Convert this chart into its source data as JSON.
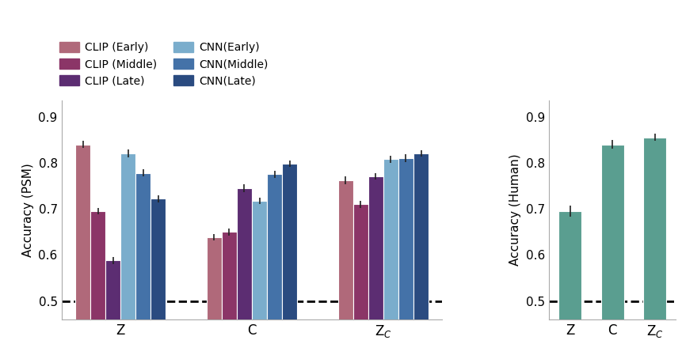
{
  "left_panel": {
    "ylabel": "Accuracy (PSM)",
    "ylim": [
      0.46,
      0.935
    ],
    "yticks": [
      0.5,
      0.6,
      0.7,
      0.8,
      0.9
    ],
    "groups": [
      "Z",
      "C",
      "Z$_C$"
    ],
    "series": [
      {
        "label": "CLIP (Early)",
        "color": "#b0697a",
        "values": [
          0.84,
          0.638,
          0.762
        ],
        "errors": [
          0.008,
          0.007,
          0.008
        ]
      },
      {
        "label": "CLIP (Middle)",
        "color": "#8b3567",
        "values": [
          0.695,
          0.65,
          0.71
        ],
        "errors": [
          0.007,
          0.008,
          0.008
        ]
      },
      {
        "label": "CLIP (Late)",
        "color": "#5c2d72",
        "values": [
          0.588,
          0.745,
          0.77
        ],
        "errors": [
          0.008,
          0.008,
          0.007
        ]
      },
      {
        "label": "CNN(Early)",
        "color": "#7aadcc",
        "values": [
          0.82,
          0.718,
          0.808
        ],
        "errors": [
          0.009,
          0.007,
          0.008
        ]
      },
      {
        "label": "CNN(Middle)",
        "color": "#4472a8",
        "values": [
          0.778,
          0.775,
          0.81
        ],
        "errors": [
          0.008,
          0.008,
          0.008
        ]
      },
      {
        "label": "CNN(Late)",
        "color": "#2a4b80",
        "values": [
          0.722,
          0.798,
          0.82
        ],
        "errors": [
          0.008,
          0.007,
          0.007
        ]
      }
    ],
    "dashed_line": 0.5
  },
  "right_panel": {
    "ylabel": "Accuracy (Human)",
    "ylim": [
      0.46,
      0.935
    ],
    "yticks": [
      0.5,
      0.6,
      0.7,
      0.8,
      0.9
    ],
    "groups": [
      "Z",
      "C",
      "Z$_C$"
    ],
    "color": "#5a9e90",
    "values": [
      0.695,
      0.84,
      0.855
    ],
    "errors": [
      0.012,
      0.01,
      0.008
    ],
    "dashed_line": 0.5
  },
  "background_color": "#ffffff",
  "bar_edge_color": "white",
  "bar_linewidth": 0.8
}
